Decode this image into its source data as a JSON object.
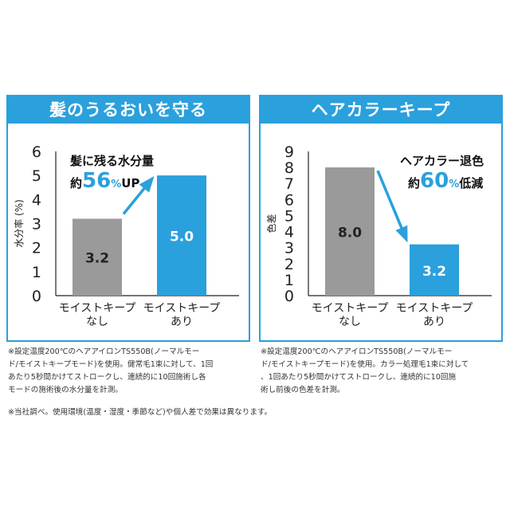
{
  "colors": {
    "accent": "#2aa0dc",
    "gray_bar": "#9a9a9a"
  },
  "chart_data": [
    {
      "type": "bar",
      "title": "髪のうるおいを守る",
      "ylabel": "水分率 (%)",
      "ylim": [
        0,
        6
      ],
      "yticks": [
        0,
        1,
        2,
        3,
        4,
        5,
        6
      ],
      "categories": [
        {
          "line1": "モイストキープ",
          "line2": "なし"
        },
        {
          "line1": "モイストキープ",
          "line2": "あり"
        }
      ],
      "values": [
        3.2,
        5.0
      ],
      "value_labels": [
        "3.2",
        "5.0"
      ],
      "bar_colors": [
        "#9a9a9a",
        "#2aa0dc"
      ],
      "annotation": {
        "line1": "髪に残る水分量",
        "prefix": "約",
        "value": "56",
        "unit": "%",
        "suffix": "UP"
      },
      "arrow": "up"
    },
    {
      "type": "bar",
      "title": "ヘアカラーキープ",
      "ylabel": "色差",
      "ylim": [
        0,
        9
      ],
      "yticks": [
        0,
        1,
        2,
        3,
        4,
        5,
        6,
        7,
        8,
        9
      ],
      "categories": [
        {
          "line1": "モイストキープ",
          "line2": "なし"
        },
        {
          "line1": "モイストキープ",
          "line2": "あり"
        }
      ],
      "values": [
        8.0,
        3.2
      ],
      "value_labels": [
        "8.0",
        "3.2"
      ],
      "bar_colors": [
        "#9a9a9a",
        "#2aa0dc"
      ],
      "annotation": {
        "line1": "ヘアカラー退色",
        "prefix": "約",
        "value": "60",
        "unit": "%",
        "suffix": "低減"
      },
      "arrow": "down"
    }
  ],
  "notes": {
    "left": [
      "※設定温度200℃のヘアアイロンTS550B(ノーマルモー",
      "ド/モイストキープモード)を使用。健常毛1束に対して、1回",
      "あたり5秒間かけてストロークし、連続的に10回施術し各",
      "モードの施術後の水分量を計測。"
    ],
    "right": [
      "※設定温度200℃のヘアアイロンTS550B(ノーマルモー",
      "ド/モイストキープモード)を使用。カラー処理毛1束に対して",
      "、1回あたり5秒間かけてストロークし、連続的に10回施",
      "術し前後の色差を計測。"
    ],
    "bottom": "※当社調べ。使用環境(温度・湿度・季節など)や個人差で効果は異なります。"
  }
}
